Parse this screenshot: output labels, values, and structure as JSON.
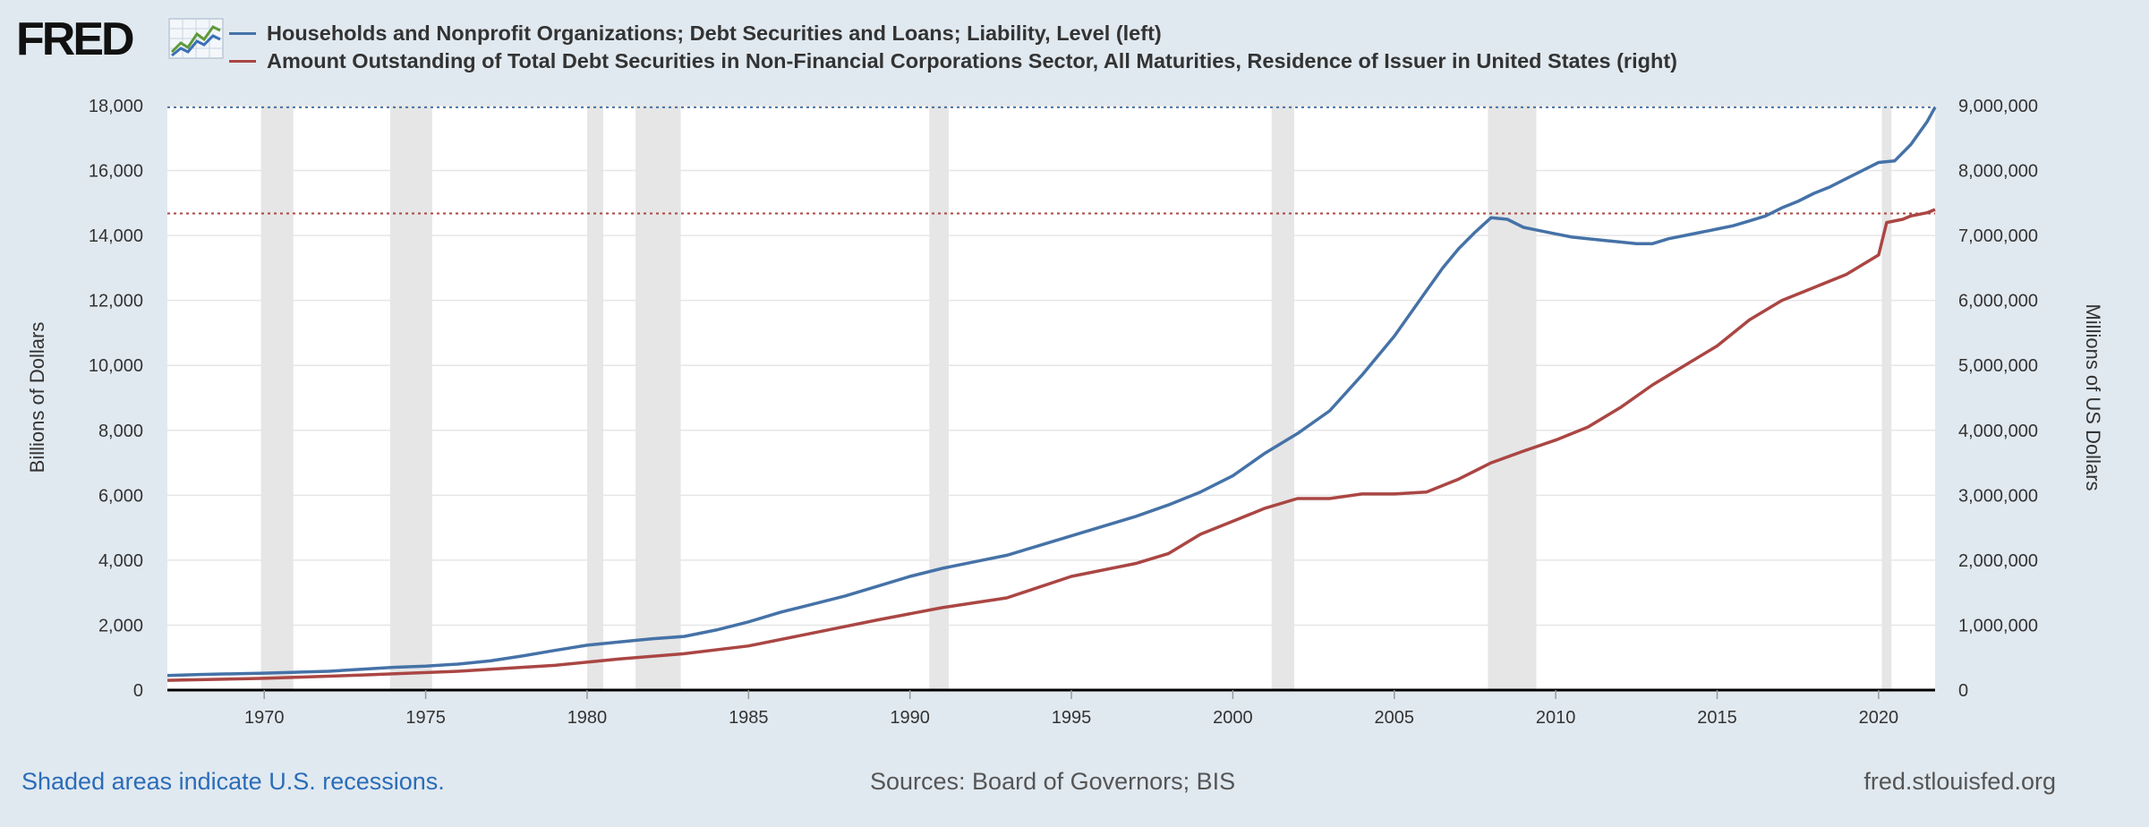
{
  "header": {
    "logo_text": "FRED",
    "logo_icon": "line-chart-icon"
  },
  "legend": [
    {
      "label": "Households and Nonprofit Organizations; Debt Securities and Loans; Liability, Level (left)",
      "color": "#4572a7"
    },
    {
      "label": "Amount Outstanding of Total Debt Securities in Non-Financial Corporations Sector, All Maturities, Residence of Issuer in United States (right)",
      "color": "#aa4643"
    }
  ],
  "footer": {
    "note": "Shaded areas indicate U.S. recessions.",
    "sources": "Sources: Board of Governors; BIS",
    "site": "fred.stlouisfed.org"
  },
  "chart_data": {
    "type": "line",
    "title": "",
    "xlabel": "",
    "ylabel_left": "Billions of Dollars",
    "ylabel_right": "Millions of US Dollars",
    "xlim": [
      1967.0,
      2021.75
    ],
    "ylim_left": [
      0,
      18000
    ],
    "ylim_right": [
      0,
      9000000
    ],
    "x_ticks": [
      1970,
      1975,
      1980,
      1985,
      1990,
      1995,
      2000,
      2005,
      2010,
      2015,
      2020
    ],
    "y_ticks_left": [
      0,
      2000,
      4000,
      6000,
      8000,
      10000,
      12000,
      14000,
      16000,
      18000
    ],
    "y_tick_labels_left": [
      "0",
      "2,000",
      "4,000",
      "6,000",
      "8,000",
      "10,000",
      "12,000",
      "14,000",
      "16,000",
      "18,000"
    ],
    "y_ticks_right": [
      0,
      1000000,
      2000000,
      3000000,
      4000000,
      5000000,
      6000000,
      7000000,
      8000000,
      9000000
    ],
    "y_tick_labels_right": [
      "0",
      "1,000,000",
      "2,000,000",
      "3,000,000",
      "4,000,000",
      "5,000,000",
      "6,000,000",
      "7,000,000",
      "8,000,000",
      "9,000,000"
    ],
    "grid": true,
    "recessions": [
      [
        1969.9,
        1970.9
      ],
      [
        1973.9,
        1975.2
      ],
      [
        1980.0,
        1980.5
      ],
      [
        1981.5,
        1982.9
      ],
      [
        1990.6,
        1991.2
      ],
      [
        2001.2,
        2001.9
      ],
      [
        2007.9,
        2009.4
      ],
      [
        2020.1,
        2020.4
      ]
    ],
    "reference_lines": [
      {
        "axis": "left",
        "value": 17950,
        "color": "#4572a7",
        "style": "dotted"
      },
      {
        "axis": "right",
        "value": 7340000,
        "color": "#aa4643",
        "style": "dotted"
      }
    ],
    "series": [
      {
        "name": "Households and Nonprofit Organizations; Debt Securities and Loans; Liability, Level (left)",
        "axis": "left",
        "color": "#4572a7",
        "x": [
          1967.0,
          1968.0,
          1970.0,
          1972.0,
          1974.0,
          1975.0,
          1976.0,
          1977.0,
          1978.0,
          1979.0,
          1980.0,
          1981.0,
          1982.0,
          1983.0,
          1984.0,
          1985.0,
          1986.0,
          1987.0,
          1988.0,
          1989.0,
          1990.0,
          1991.0,
          1992.0,
          1993.0,
          1994.0,
          1995.0,
          1996.0,
          1997.0,
          1998.0,
          1999.0,
          2000.0,
          2001.0,
          2002.0,
          2003.0,
          2004.0,
          2005.0,
          2006.0,
          2006.5,
          2007.0,
          2007.5,
          2008.0,
          2008.5,
          2009.0,
          2009.5,
          2010.0,
          2010.5,
          2011.0,
          2011.5,
          2012.0,
          2012.5,
          2013.0,
          2013.5,
          2014.0,
          2014.5,
          2015.0,
          2015.5,
          2016.0,
          2016.5,
          2017.0,
          2017.5,
          2018.0,
          2018.5,
          2019.0,
          2019.5,
          2020.0,
          2020.5,
          2021.0,
          2021.5,
          2021.75
        ],
        "values": [
          450,
          480,
          520,
          580,
          700,
          740,
          800,
          900,
          1050,
          1220,
          1380,
          1480,
          1580,
          1650,
          1850,
          2100,
          2400,
          2650,
          2900,
          3200,
          3500,
          3750,
          3950,
          4150,
          4450,
          4750,
          5050,
          5350,
          5700,
          6100,
          6600,
          7300,
          7900,
          8600,
          9700,
          10900,
          12300,
          13000,
          13600,
          14100,
          14550,
          14500,
          14250,
          14150,
          14050,
          13950,
          13900,
          13850,
          13800,
          13750,
          13750,
          13900,
          14000,
          14100,
          14200,
          14300,
          14450,
          14600,
          14850,
          15050,
          15300,
          15500,
          15750,
          16000,
          16250,
          16300,
          16800,
          17500,
          17950
        ]
      },
      {
        "name": "Amount Outstanding of Total Debt Securities in Non-Financial Corporations Sector, All Maturities, Residence of Issuer in United States (right)",
        "axis": "right",
        "color": "#aa4643",
        "x": [
          1967.0,
          1970.0,
          1973.0,
          1976.0,
          1979.0,
          1981.0,
          1983.0,
          1985.0,
          1987.0,
          1989.0,
          1991.0,
          1993.0,
          1995.0,
          1997.0,
          1998.0,
          1999.0,
          2000.0,
          2001.0,
          2002.0,
          2003.0,
          2004.0,
          2005.0,
          2006.0,
          2007.0,
          2008.0,
          2009.0,
          2010.0,
          2011.0,
          2012.0,
          2013.0,
          2014.0,
          2015.0,
          2016.0,
          2017.0,
          2018.0,
          2019.0,
          2020.0,
          2020.25,
          2020.75,
          2021.0,
          2021.5,
          2021.75
        ],
        "values": [
          150000,
          180000,
          230000,
          290000,
          380000,
          480000,
          560000,
          680000,
          880000,
          1080000,
          1270000,
          1420000,
          1750000,
          1950000,
          2100000,
          2400000,
          2600000,
          2800000,
          2950000,
          2950000,
          3020000,
          3020000,
          3050000,
          3250000,
          3500000,
          3680000,
          3850000,
          4050000,
          4350000,
          4700000,
          5000000,
          5300000,
          5700000,
          6000000,
          6200000,
          6400000,
          6700000,
          7200000,
          7250000,
          7300000,
          7350000,
          7400000
        ]
      }
    ]
  }
}
